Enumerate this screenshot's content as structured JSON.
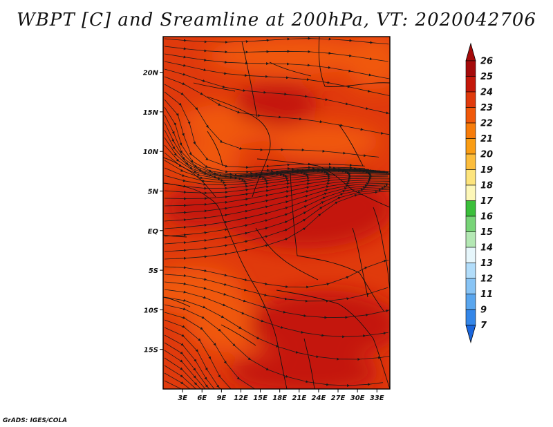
{
  "title": "WBPT [C] and Sreamline at 200hPa, VT: 2020042706",
  "credit": "GrADS: IGES/COLA",
  "map": {
    "lon_range": [
      0,
      35
    ],
    "lat_range": [
      -20,
      24.5
    ],
    "lon_ticks": [
      "3E",
      "6E",
      "9E",
      "12E",
      "15E",
      "18E",
      "21E",
      "24E",
      "27E",
      "30E",
      "33E"
    ],
    "lon_tick_values": [
      3,
      6,
      9,
      12,
      15,
      18,
      21,
      24,
      27,
      30,
      33
    ],
    "lat_ticks": [
      "20N",
      "15N",
      "10N",
      "5N",
      "EQ",
      "5S",
      "10S",
      "15S"
    ],
    "lat_tick_values": [
      20,
      15,
      10,
      5,
      0,
      -5,
      -10,
      -15
    ]
  },
  "colorbar": {
    "labels": [
      "26",
      "25",
      "24",
      "23",
      "22",
      "21",
      "20",
      "19",
      "18",
      "17",
      "16",
      "15",
      "14",
      "13",
      "12",
      "11",
      "9",
      "7"
    ],
    "colors": [
      "#a50a0a",
      "#c4180a",
      "#e03a0c",
      "#f0580a",
      "#f77c0a",
      "#fa9d14",
      "#fcbd3c",
      "#fde47c",
      "#fdf7b8",
      "#3bbf3b",
      "#78d478",
      "#b4e8b4",
      "#e6f6fb",
      "#b2ddfa",
      "#88c4f5",
      "#5aa6ee",
      "#3486e8",
      "#1a66dd"
    ],
    "top_arrow_color": "#a50a0a",
    "bottom_arrow_color": "#1a66dd"
  }
}
